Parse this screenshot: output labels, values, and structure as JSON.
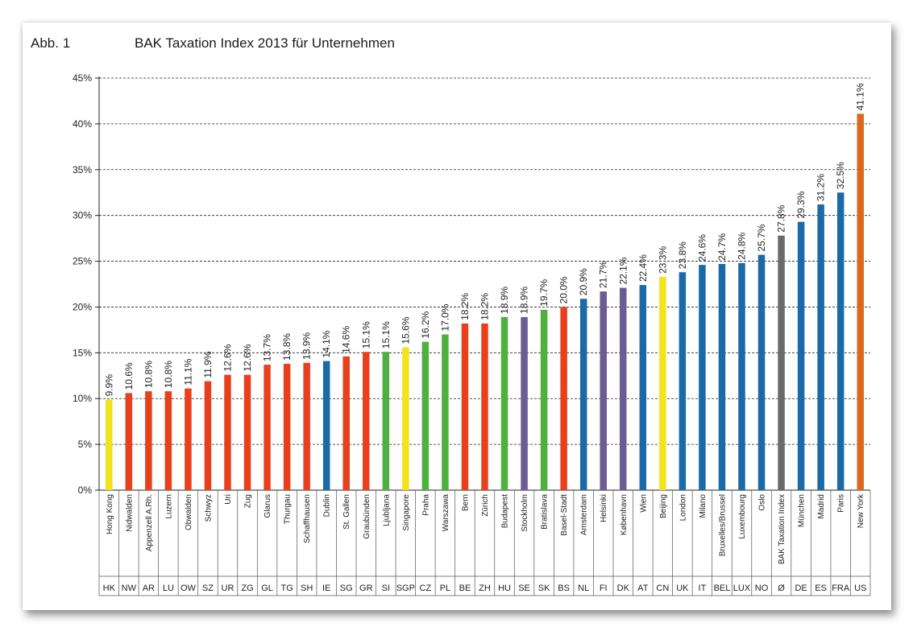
{
  "header": {
    "fig_label": "Abb. 1",
    "title": "BAK Taxation Index 2013 für Unternehmen"
  },
  "colors": {
    "red": "#e8401c",
    "yellow": "#f2e31b",
    "blue": "#1b6aa8",
    "green": "#4fb040",
    "purple": "#6b5c94",
    "gray": "#6a6a6a",
    "orange": "#d9691f"
  },
  "chart_data": {
    "type": "bar",
    "title": "BAK Taxation Index 2013 für Unternehmen",
    "ylim": [
      0,
      45
    ],
    "yticks": [
      0,
      5,
      10,
      15,
      20,
      25,
      30,
      35,
      40,
      45
    ],
    "ytick_labels": [
      "0%",
      "5%",
      "10%",
      "15%",
      "20%",
      "25%",
      "30%",
      "35%",
      "40%",
      "45%"
    ],
    "grid": true,
    "legend": "none",
    "categories": [
      "Hong Kong",
      "Nidwalden",
      "Appenzell A.Rh.",
      "Luzern",
      "Obwalden",
      "Schwyz",
      "Uri",
      "Zug",
      "Glarus",
      "Thurgau",
      "Schaffhausen",
      "Dublin",
      "St. Gallen",
      "Graubünden",
      "Ljubljana",
      "Singapore",
      "Praha",
      "Warszawa",
      "Bern",
      "Zürich",
      "Budapest",
      "Stockholm",
      "Bratislava",
      "Basel-Stadt",
      "Amsterdam",
      "Helsinki",
      "København",
      "Wien",
      "Beijing",
      "London",
      "Milano",
      "Bruxelles/Brussel",
      "Luxembourg",
      "Oslo",
      "BAK Taxation Index",
      "München",
      "Madrid",
      "Paris",
      "New York"
    ],
    "codes": [
      "HK",
      "NW",
      "AR",
      "LU",
      "OW",
      "SZ",
      "UR",
      "ZG",
      "GL",
      "TG",
      "SH",
      "IE",
      "SG",
      "GR",
      "SI",
      "SGP",
      "CZ",
      "PL",
      "BE",
      "ZH",
      "HU",
      "SE",
      "SK",
      "BS",
      "NL",
      "FI",
      "DK",
      "AT",
      "CN",
      "UK",
      "IT",
      "BEL",
      "LUX",
      "NO",
      "Ø",
      "DE",
      "ES",
      "FRA",
      "US"
    ],
    "values": [
      9.9,
      10.6,
      10.8,
      10.8,
      11.1,
      11.9,
      12.6,
      12.6,
      13.7,
      13.8,
      13.9,
      14.1,
      14.6,
      15.1,
      15.1,
      15.6,
      16.2,
      17.0,
      18.2,
      18.2,
      18.9,
      18.9,
      19.7,
      20.0,
      20.9,
      21.7,
      22.1,
      22.4,
      23.3,
      23.8,
      24.6,
      24.7,
      24.8,
      25.7,
      27.8,
      29.3,
      31.2,
      32.5,
      41.1
    ],
    "value_labels": [
      "9.9%",
      "10.6%",
      "10.8%",
      "10.8%",
      "11.1%",
      "11.9%",
      "12.6%",
      "12.6%",
      "13.7%",
      "13.8%",
      "13.9%",
      "14.1%",
      "14.6%",
      "15.1%",
      "15.1%",
      "15.6%",
      "16.2%",
      "17.0%",
      "18.2%",
      "18.2%",
      "18.9%",
      "18.9%",
      "19.7%",
      "20.0%",
      "20.9%",
      "21.7%",
      "22.1%",
      "22.4%",
      "23.3%",
      "23.8%",
      "24.6%",
      "24.7%",
      "24.8%",
      "25.7%",
      "27.8%",
      "29.3%",
      "31.2%",
      "32.5%",
      "41.1%"
    ],
    "bar_colors": [
      "yellow",
      "red",
      "red",
      "red",
      "red",
      "red",
      "red",
      "red",
      "red",
      "red",
      "red",
      "blue",
      "red",
      "red",
      "green",
      "yellow",
      "green",
      "green",
      "red",
      "red",
      "green",
      "purple",
      "green",
      "red",
      "blue",
      "purple",
      "purple",
      "blue",
      "yellow",
      "blue",
      "blue",
      "blue",
      "blue",
      "blue",
      "gray",
      "blue",
      "blue",
      "blue",
      "orange"
    ]
  }
}
